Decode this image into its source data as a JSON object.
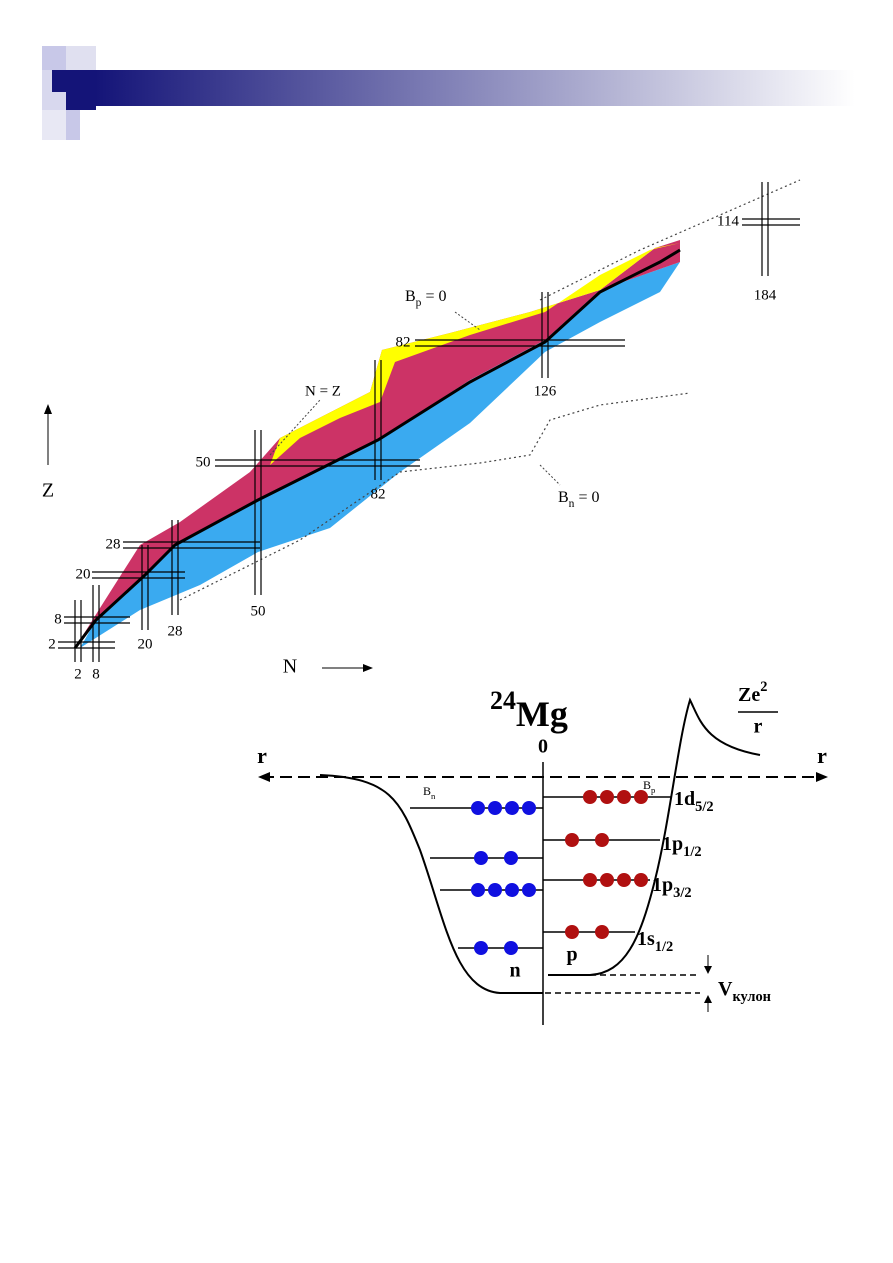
{
  "chart": {
    "axis_z": "Z",
    "axis_n": "N",
    "magic_z": [
      2,
      8,
      20,
      28,
      50,
      82,
      114
    ],
    "magic_n": [
      2,
      8,
      20,
      28,
      50,
      82,
      126,
      184
    ],
    "n_eq_z": "N = Z",
    "proton_drip": {
      "symbol": "B",
      "sub": "p",
      "rest": " = 0"
    },
    "neutron_drip": {
      "symbol": "B",
      "sub": "n",
      "rest": " = 0"
    }
  },
  "potential": {
    "mass": "24",
    "element": "Mg",
    "origin": "0",
    "axis_left": "r",
    "axis_right": "r",
    "coulomb": {
      "charge": "Ze",
      "power": "2",
      "denominator": "r"
    },
    "bn": {
      "symbol": "B",
      "sub": "n"
    },
    "bp": {
      "symbol": "B",
      "sub": "p"
    },
    "levels": [
      {
        "name": "1d",
        "sub": "5/2",
        "neutrons": 4,
        "protons": 4
      },
      {
        "name": "1p",
        "sub": "1/2",
        "neutrons": 2,
        "protons": 2
      },
      {
        "name": "1p",
        "sub": "3/2",
        "neutrons": 4,
        "protons": 4
      },
      {
        "name": "1s",
        "sub": "1/2",
        "neutrons": 2,
        "protons": 2
      }
    ],
    "neutron": "n",
    "proton": "p",
    "v_coulomb": {
      "symbol": "V",
      "sub": "кулон"
    }
  }
}
